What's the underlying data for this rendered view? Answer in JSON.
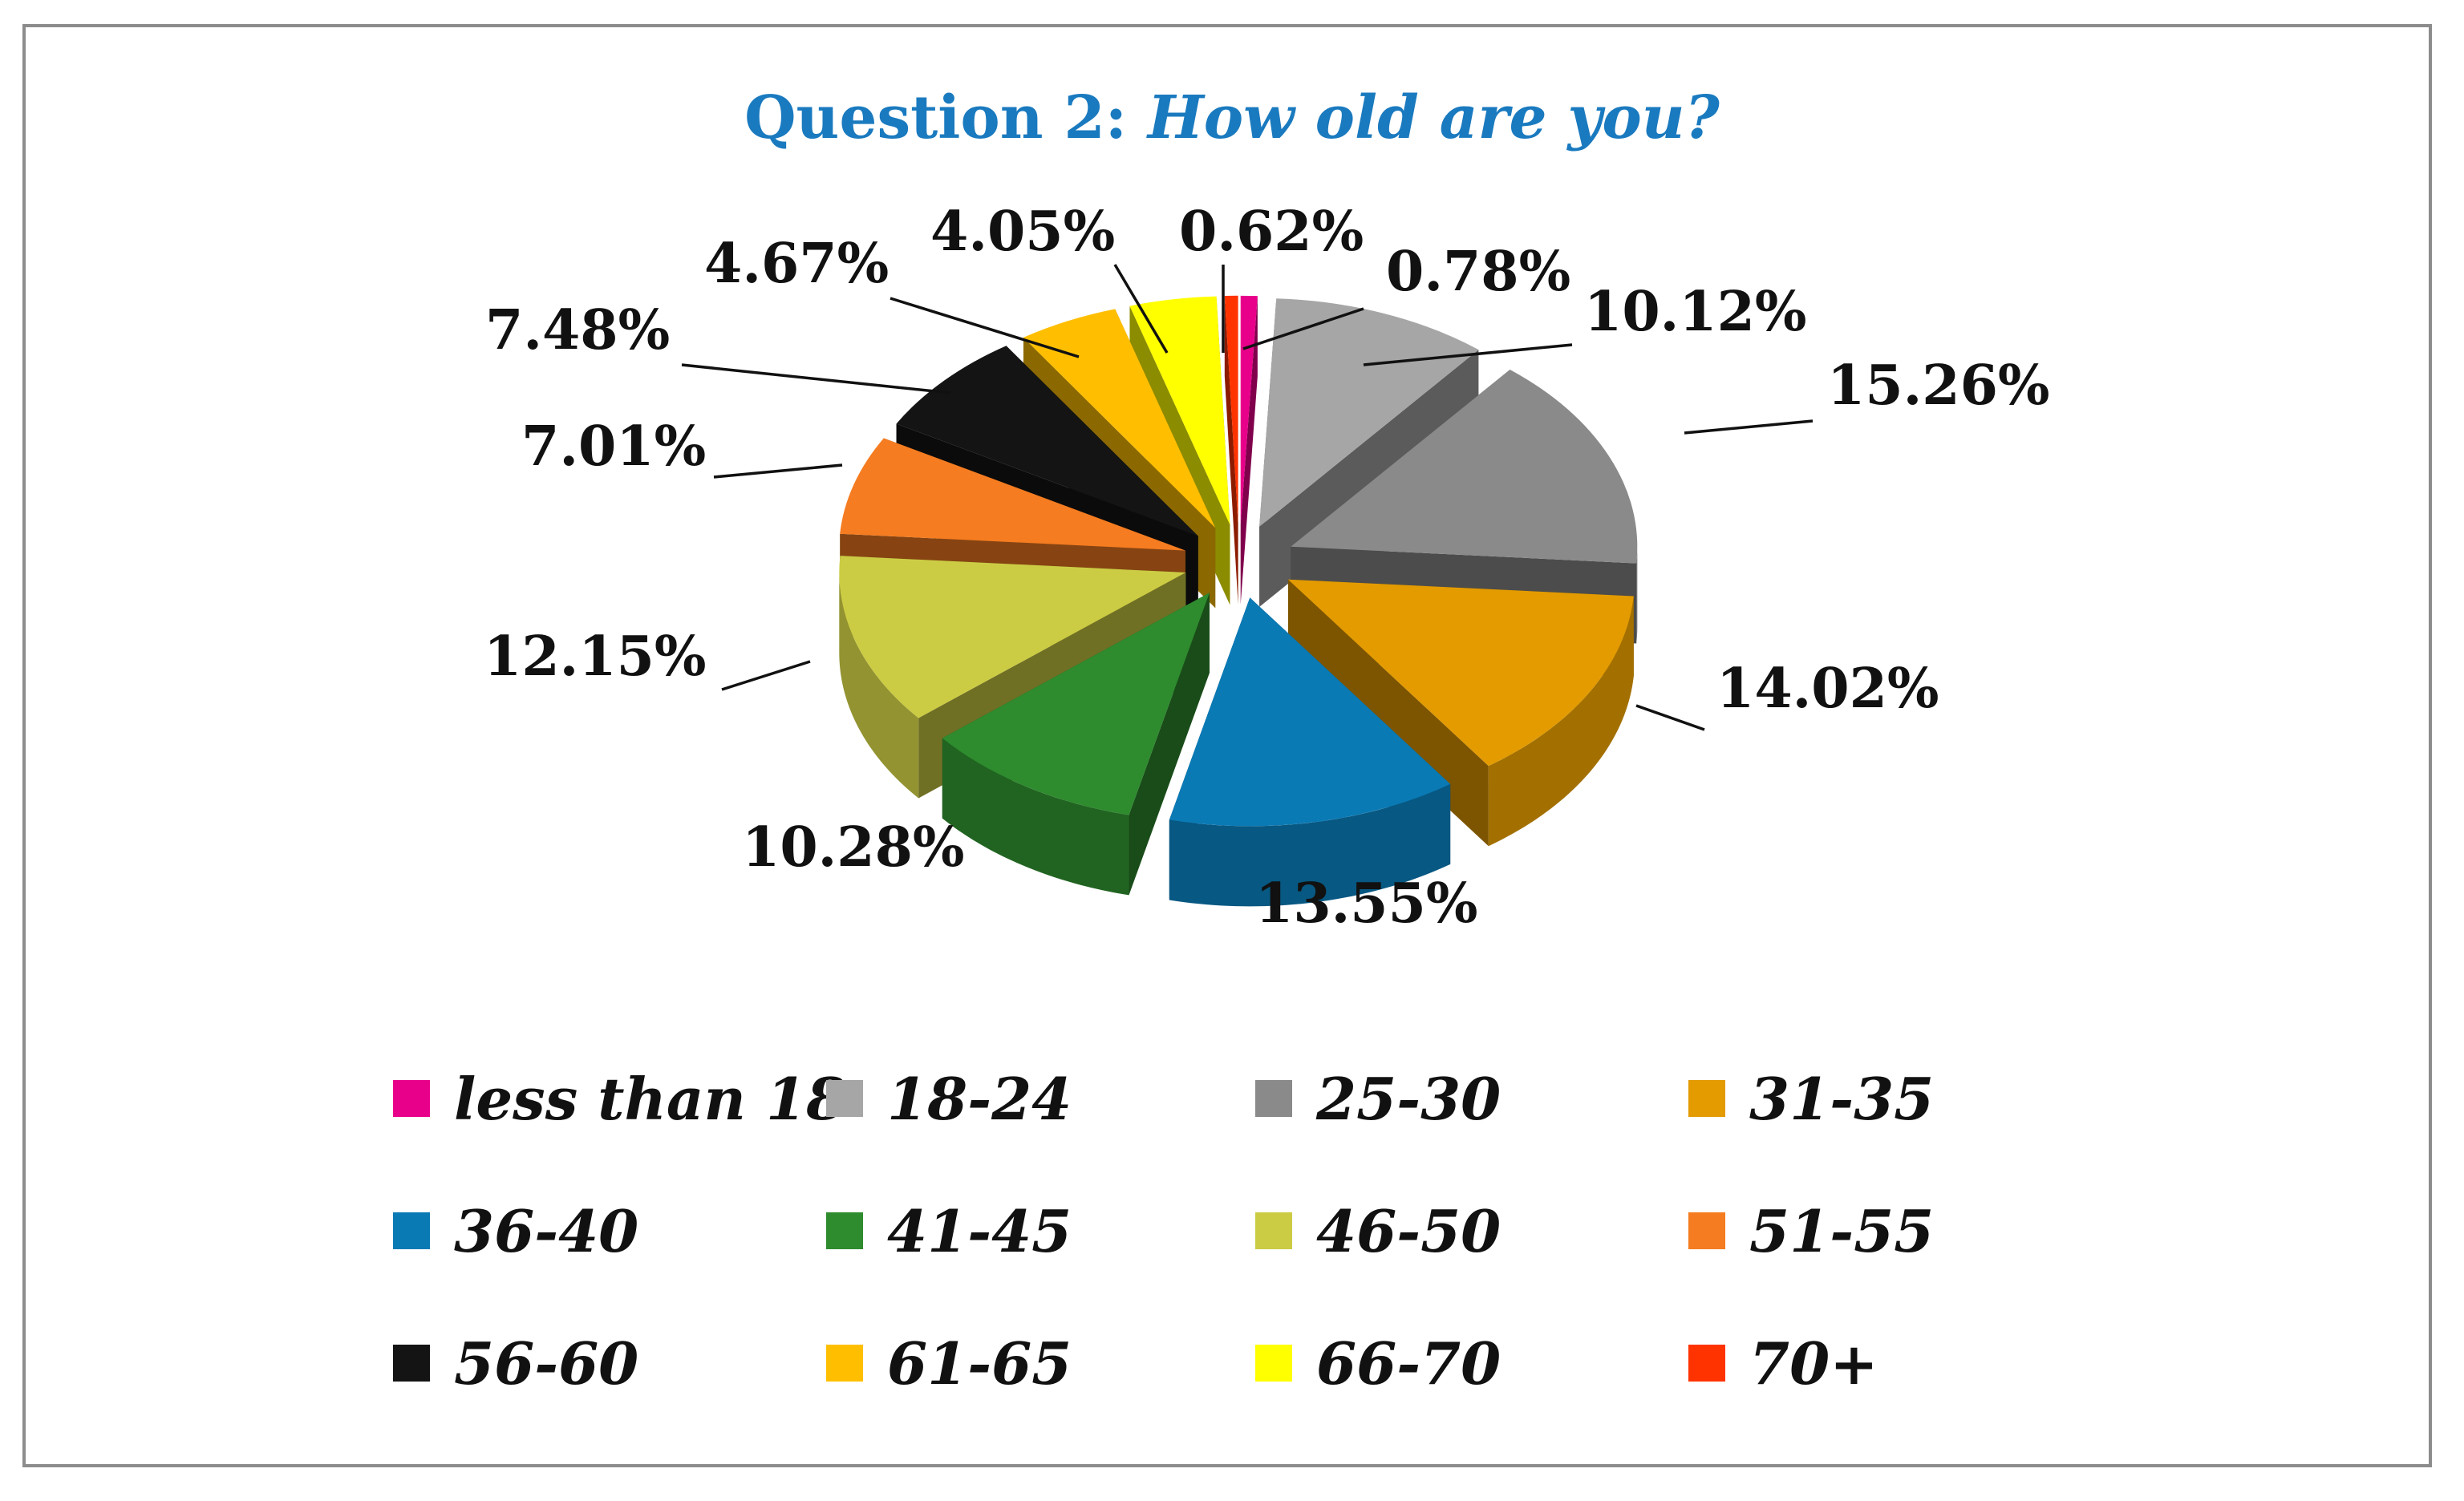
{
  "title": {
    "prefix": "Question 2:",
    "question": "How old are you?"
  },
  "chart_data": {
    "type": "pie",
    "style": "3d exploded pie",
    "legend_placement": "bottom",
    "slices": [
      {
        "name": "less than 18",
        "value": 0.78,
        "label": "0.78%",
        "color": "#e8008a"
      },
      {
        "name": "18-24",
        "value": 10.12,
        "label": "10.12%",
        "color": "#a6a6a6"
      },
      {
        "name": "25-30",
        "value": 15.26,
        "label": "15.26%",
        "color": "#8a8a8a"
      },
      {
        "name": "31-35",
        "value": 14.02,
        "label": "14.02%",
        "color": "#e39b00"
      },
      {
        "name": "36-40",
        "value": 13.55,
        "label": "13.55%",
        "color": "#0a7ab5"
      },
      {
        "name": "41-45",
        "value": 10.28,
        "label": "10.28%",
        "color": "#2e8b2e"
      },
      {
        "name": "46-50",
        "value": 12.15,
        "label": "12.15%",
        "color": "#cccc44"
      },
      {
        "name": "51-55",
        "value": 7.01,
        "label": "7.01%",
        "color": "#f57c20"
      },
      {
        "name": "56-60",
        "value": 7.48,
        "label": "7.48%",
        "color": "#141414"
      },
      {
        "name": "61-65",
        "value": 4.67,
        "label": "4.67%",
        "color": "#ffbf00"
      },
      {
        "name": "66-70",
        "value": 4.05,
        "label": "4.05%",
        "color": "#ffff00"
      },
      {
        "name": "70+",
        "value": 0.62,
        "label": "0.62%",
        "color": "#ff3300"
      }
    ]
  }
}
